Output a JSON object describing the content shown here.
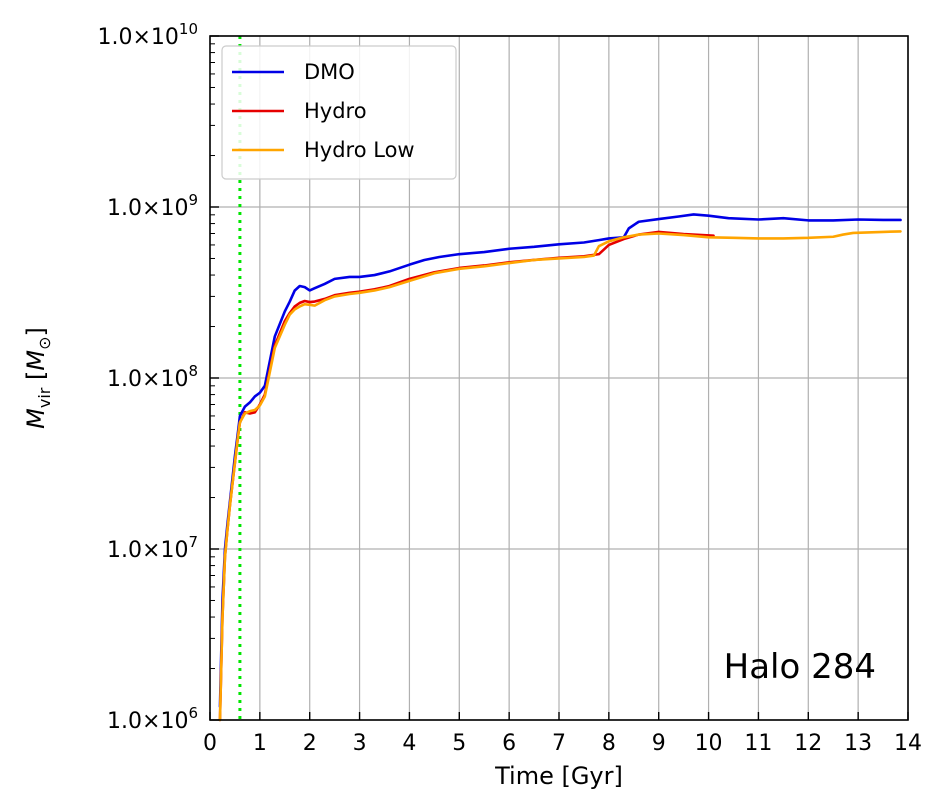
{
  "chart_data": {
    "type": "line",
    "xlabel": "Time [Gyr]",
    "ylabel": "M_vir [M_⊙]",
    "ylabel_main": "M",
    "ylabel_sub": "vir",
    "ylabel_unit_open": " [",
    "ylabel_unit_main": "M",
    "ylabel_unit_sub": "⊙",
    "ylabel_unit_close": "]",
    "xlim": [
      0,
      14
    ],
    "ylim": [
      1000000,
      10000000000
    ],
    "yscale": "log",
    "grid": true,
    "legend_position": "top-left",
    "x_ticks": [
      "0",
      "1",
      "2",
      "3",
      "4",
      "5",
      "6",
      "7",
      "8",
      "9",
      "10",
      "11",
      "12",
      "13",
      "14"
    ],
    "y_ticks": [
      {
        "value": 1000000,
        "mantissa": "1.0×10",
        "exponent": "6"
      },
      {
        "value": 10000000,
        "mantissa": "1.0×10",
        "exponent": "7"
      },
      {
        "value": 100000000,
        "mantissa": "1.0×10",
        "exponent": "8"
      },
      {
        "value": 1000000000,
        "mantissa": "1.0×10",
        "exponent": "9"
      },
      {
        "value": 10000000000,
        "mantissa": "1.0×10",
        "exponent": "10"
      }
    ],
    "annotation": "Halo 284",
    "vline": {
      "x": 0.6,
      "color": "#00e600",
      "style": "dotted"
    },
    "series": [
      {
        "name": "DMO",
        "color": "#0000e6",
        "x": [
          0.2,
          0.25,
          0.3,
          0.35,
          0.4,
          0.5,
          0.56,
          0.6,
          0.7,
          0.8,
          0.9,
          1.0,
          1.1,
          1.3,
          1.5,
          1.6,
          1.7,
          1.8,
          1.9,
          2.0,
          2.1,
          2.3,
          2.5,
          2.8,
          3.0,
          3.3,
          3.6,
          4.0,
          4.3,
          4.6,
          5.0,
          5.5,
          6.0,
          6.5,
          7.0,
          7.5,
          7.8,
          8.0,
          8.3,
          8.4,
          8.6,
          9.0,
          9.4,
          9.7,
          10.0,
          10.4,
          11.0,
          11.5,
          12.0,
          12.5,
          13.0,
          13.5,
          13.85
        ],
        "y": [
          1200000,
          5000000,
          10000000,
          14000000,
          19000000,
          35000000,
          48000000,
          60000000,
          68000000,
          72000000,
          78000000,
          82000000,
          90000000,
          175000000,
          245000000,
          280000000,
          325000000,
          345000000,
          340000000,
          325000000,
          335000000,
          355000000,
          380000000,
          390000000,
          390000000,
          400000000,
          420000000,
          460000000,
          490000000,
          510000000,
          530000000,
          545000000,
          570000000,
          585000000,
          605000000,
          620000000,
          640000000,
          655000000,
          665000000,
          750000000,
          820000000,
          850000000,
          880000000,
          905000000,
          890000000,
          860000000,
          845000000,
          860000000,
          835000000,
          835000000,
          845000000,
          840000000,
          840000000
        ]
      },
      {
        "name": "Hydro",
        "color": "#e60000",
        "x": [
          0.2,
          0.25,
          0.3,
          0.35,
          0.4,
          0.5,
          0.56,
          0.6,
          0.7,
          0.8,
          0.9,
          1.0,
          1.1,
          1.3,
          1.5,
          1.6,
          1.7,
          1.8,
          1.9,
          2.0,
          2.1,
          2.3,
          2.5,
          2.8,
          3.0,
          3.3,
          3.6,
          4.0,
          4.5,
          5.0,
          5.5,
          6.0,
          6.5,
          7.0,
          7.5,
          7.8,
          8.0,
          8.3,
          8.6,
          9.0,
          9.5,
          10.1
        ],
        "y": [
          1000000,
          4000000,
          9000000,
          13000000,
          18000000,
          32000000,
          45000000,
          55000000,
          63000000,
          62000000,
          63000000,
          70000000,
          80000000,
          155000000,
          215000000,
          240000000,
          262000000,
          275000000,
          282000000,
          278000000,
          280000000,
          290000000,
          305000000,
          315000000,
          320000000,
          330000000,
          345000000,
          380000000,
          415000000,
          440000000,
          455000000,
          475000000,
          490000000,
          505000000,
          515000000,
          530000000,
          600000000,
          650000000,
          690000000,
          715000000,
          695000000,
          680000000
        ]
      },
      {
        "name": "Hydro Low",
        "color": "#ffa500",
        "x": [
          0.2,
          0.25,
          0.3,
          0.35,
          0.4,
          0.5,
          0.56,
          0.6,
          0.7,
          0.8,
          0.9,
          1.0,
          1.1,
          1.3,
          1.5,
          1.6,
          1.7,
          1.8,
          1.9,
          2.0,
          2.1,
          2.3,
          2.5,
          2.8,
          3.0,
          3.3,
          3.6,
          4.0,
          4.5,
          5.0,
          5.5,
          6.0,
          6.5,
          7.0,
          7.5,
          7.7,
          7.8,
          8.0,
          8.3,
          8.6,
          9.0,
          9.5,
          10.0,
          10.5,
          11.0,
          11.5,
          12.0,
          12.5,
          12.7,
          12.9,
          13.2,
          13.5,
          13.85
        ],
        "y": [
          1000000,
          4000000,
          9000000,
          13000000,
          18000000,
          32000000,
          45000000,
          55000000,
          62000000,
          64000000,
          65000000,
          69000000,
          78000000,
          150000000,
          205000000,
          235000000,
          252000000,
          262000000,
          270000000,
          268000000,
          265000000,
          285000000,
          300000000,
          310000000,
          315000000,
          325000000,
          340000000,
          370000000,
          410000000,
          435000000,
          450000000,
          470000000,
          490000000,
          500000000,
          510000000,
          520000000,
          590000000,
          630000000,
          665000000,
          690000000,
          700000000,
          685000000,
          665000000,
          660000000,
          655000000,
          655000000,
          660000000,
          670000000,
          690000000,
          705000000,
          710000000,
          715000000,
          720000000
        ]
      }
    ]
  }
}
